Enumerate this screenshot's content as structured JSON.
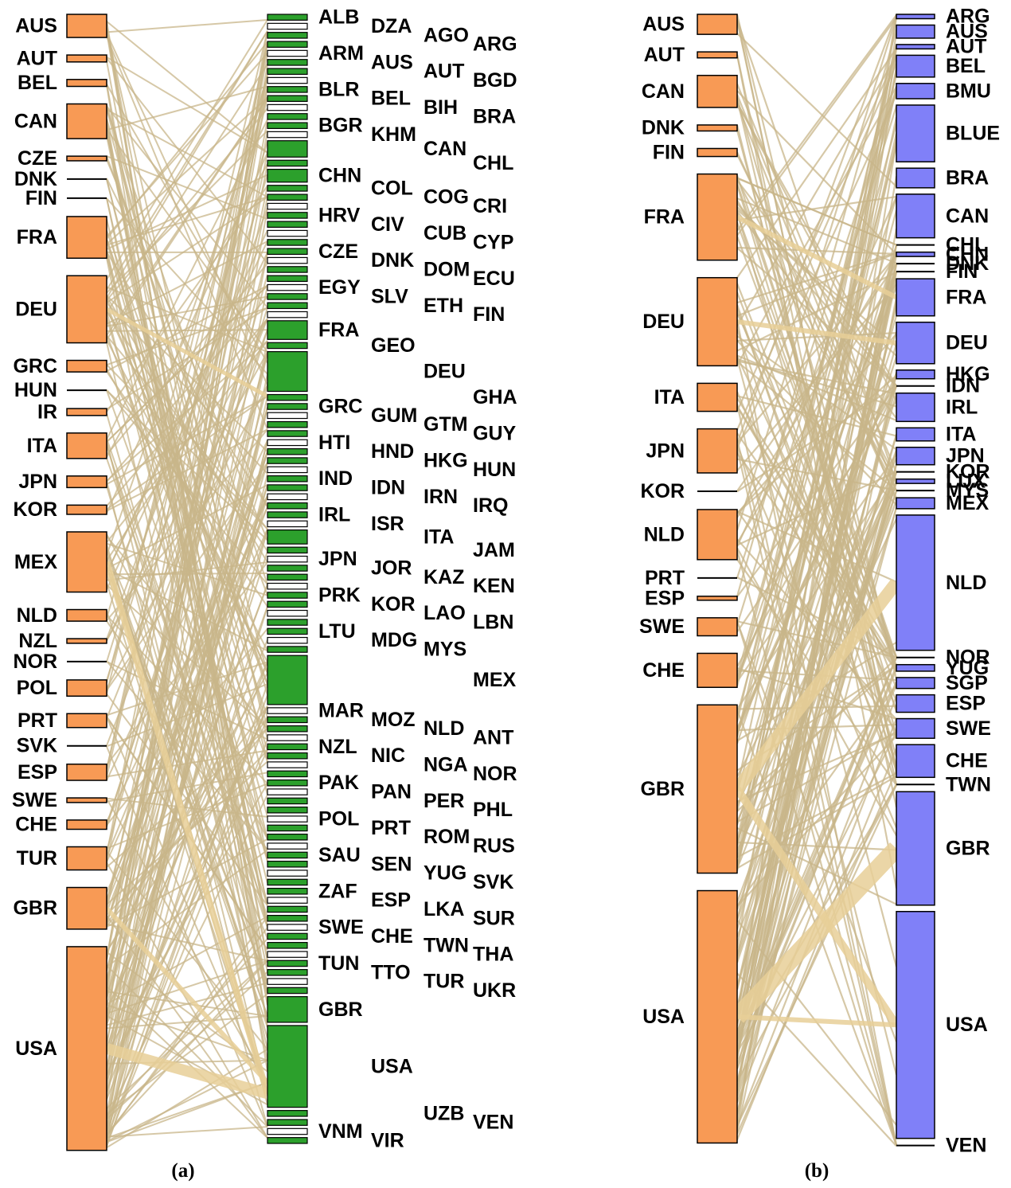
{
  "colors": {
    "source_fill": "#f89a55",
    "target_fill_a": "#2ca02c",
    "target_fill_b": "#8080f8",
    "flow": "#c8b58a",
    "flow_thick": "#e8cf98",
    "outline": "#000000"
  },
  "panel_a": {
    "caption": "(a)",
    "sources": [
      {
        "code": "AUS",
        "size": 1
      },
      {
        "code": "AUT",
        "size": 0.3
      },
      {
        "code": "BEL",
        "size": 0.3
      },
      {
        "code": "CAN",
        "size": 1.5
      },
      {
        "code": "CZE",
        "size": 0.2
      },
      {
        "code": "DNK",
        "size": 0.05
      },
      {
        "code": "FIN",
        "size": 0.05
      },
      {
        "code": "FRA",
        "size": 1.8
      },
      {
        "code": "DEU",
        "size": 2.9
      },
      {
        "code": "GRC",
        "size": 0.5
      },
      {
        "code": "HUN",
        "size": 0.05
      },
      {
        "code": "IR",
        "size": 0.3
      },
      {
        "code": "ITA",
        "size": 1.1
      },
      {
        "code": "JPN",
        "size": 0.5
      },
      {
        "code": "KOR",
        "size": 0.4
      },
      {
        "code": "MEX",
        "size": 2.6
      },
      {
        "code": "NLD",
        "size": 0.5
      },
      {
        "code": "NZL",
        "size": 0.2
      },
      {
        "code": "NOR",
        "size": 0.05
      },
      {
        "code": "POL",
        "size": 0.7
      },
      {
        "code": "PRT",
        "size": 0.6
      },
      {
        "code": "SVK",
        "size": 0.05
      },
      {
        "code": "ESP",
        "size": 0.7
      },
      {
        "code": "SWE",
        "size": 0.2
      },
      {
        "code": "CHE",
        "size": 0.4
      },
      {
        "code": "TUR",
        "size": 1
      },
      {
        "code": "GBR",
        "size": 1.8
      },
      {
        "code": "USA",
        "size": 8.8
      }
    ],
    "targets": [
      {
        "code": "ALB"
      },
      {
        "code": "DZA"
      },
      {
        "code": "AGO"
      },
      {
        "code": "ARG"
      },
      {
        "code": "ARM"
      },
      {
        "code": "AUS"
      },
      {
        "code": "AUT"
      },
      {
        "code": "BGD"
      },
      {
        "code": "BLR"
      },
      {
        "code": "BEL"
      },
      {
        "code": "BIH"
      },
      {
        "code": "BRA"
      },
      {
        "code": "BGR"
      },
      {
        "code": "KHM"
      },
      {
        "code": "CAN"
      },
      {
        "code": "CHL"
      },
      {
        "code": "CHN"
      },
      {
        "code": "COL"
      },
      {
        "code": "COG"
      },
      {
        "code": "CRI"
      },
      {
        "code": "HRV"
      },
      {
        "code": "CIV"
      },
      {
        "code": "CUB"
      },
      {
        "code": "CYP"
      },
      {
        "code": "CZE"
      },
      {
        "code": "DNK"
      },
      {
        "code": "DOM"
      },
      {
        "code": "ECU"
      },
      {
        "code": "EGY"
      },
      {
        "code": "SLV"
      },
      {
        "code": "ETH"
      },
      {
        "code": "FIN"
      },
      {
        "code": "FRA"
      },
      {
        "code": "GEO"
      },
      {
        "code": "DEU"
      },
      {
        "code": "GHA"
      },
      {
        "code": "GRC"
      },
      {
        "code": "GUM"
      },
      {
        "code": "GTM"
      },
      {
        "code": "GUY"
      },
      {
        "code": "HTI"
      },
      {
        "code": "HND"
      },
      {
        "code": "HKG"
      },
      {
        "code": "HUN"
      },
      {
        "code": "IND"
      },
      {
        "code": "IDN"
      },
      {
        "code": "IRN"
      },
      {
        "code": "IRQ"
      },
      {
        "code": "IRL"
      },
      {
        "code": "ISR"
      },
      {
        "code": "ITA"
      },
      {
        "code": "JAM"
      },
      {
        "code": "JPN"
      },
      {
        "code": "JOR"
      },
      {
        "code": "KAZ"
      },
      {
        "code": "KEN"
      },
      {
        "code": "PRK"
      },
      {
        "code": "KOR"
      },
      {
        "code": "LAO"
      },
      {
        "code": "LBN"
      },
      {
        "code": "LTU"
      },
      {
        "code": "MDG"
      },
      {
        "code": "MYS"
      },
      {
        "code": "MEX"
      },
      {
        "code": "MAR"
      },
      {
        "code": "MOZ"
      },
      {
        "code": "NLD"
      },
      {
        "code": "ANT"
      },
      {
        "code": "NZL"
      },
      {
        "code": "NIC"
      },
      {
        "code": "NGA"
      },
      {
        "code": "NOR"
      },
      {
        "code": "PAK"
      },
      {
        "code": "PAN"
      },
      {
        "code": "PER"
      },
      {
        "code": "PHL"
      },
      {
        "code": "POL"
      },
      {
        "code": "PRT"
      },
      {
        "code": "ROM"
      },
      {
        "code": "RUS"
      },
      {
        "code": "SAU"
      },
      {
        "code": "SEN"
      },
      {
        "code": "YUG"
      },
      {
        "code": "SVK"
      },
      {
        "code": "ZAF"
      },
      {
        "code": "ESP"
      },
      {
        "code": "LKA"
      },
      {
        "code": "SUR"
      },
      {
        "code": "SWE"
      },
      {
        "code": "CHE"
      },
      {
        "code": "TWN"
      },
      {
        "code": "THA"
      },
      {
        "code": "TUN"
      },
      {
        "code": "TTO"
      },
      {
        "code": "TUR"
      },
      {
        "code": "UKR"
      },
      {
        "code": "GBR"
      },
      {
        "code": "USA"
      },
      {
        "code": "UZB"
      },
      {
        "code": "VEN"
      },
      {
        "code": "VNM"
      },
      {
        "code": "VIR"
      }
    ]
  },
  "panel_b": {
    "caption": "(b)",
    "sources": [
      {
        "code": "AUS",
        "size": 1
      },
      {
        "code": "AUT",
        "size": 0.3
      },
      {
        "code": "CAN",
        "size": 1.6
      },
      {
        "code": "DNK",
        "size": 0.3
      },
      {
        "code": "FIN",
        "size": 0.4
      },
      {
        "code": "FRA",
        "size": 4.3
      },
      {
        "code": "DEU",
        "size": 4.4
      },
      {
        "code": "ITA",
        "size": 1.4
      },
      {
        "code": "JPN",
        "size": 2.2
      },
      {
        "code": "KOR",
        "size": 0.05
      },
      {
        "code": "NLD",
        "size": 2.5
      },
      {
        "code": "PRT",
        "size": 0.05
      },
      {
        "code": "ESP",
        "size": 0.2
      },
      {
        "code": "SWE",
        "size": 0.9
      },
      {
        "code": "CHE",
        "size": 1.7
      },
      {
        "code": "GBR",
        "size": 8.4
      },
      {
        "code": "USA",
        "size": 12.6
      }
    ],
    "targets": [
      {
        "code": "ARG",
        "size": 0.2
      },
      {
        "code": "AUS",
        "size": 0.6
      },
      {
        "code": "AUT",
        "size": 0.2
      },
      {
        "code": "BEL",
        "size": 1
      },
      {
        "code": "BMU",
        "size": 0.7
      },
      {
        "code": "BLUE",
        "size": 2.6
      },
      {
        "code": "BRA",
        "size": 0.9
      },
      {
        "code": "CAN",
        "size": 2
      },
      {
        "code": "CHL",
        "size": 0.05
      },
      {
        "code": "CHN",
        "size": 0.2
      },
      {
        "code": "DNK",
        "size": 0.05
      },
      {
        "code": "FIN",
        "size": 0.05
      },
      {
        "code": "FRA",
        "size": 1.7
      },
      {
        "code": "DEU",
        "size": 1.9
      },
      {
        "code": "HKG",
        "size": 0.4
      },
      {
        "code": "IDN",
        "size": 0.05
      },
      {
        "code": "IRL",
        "size": 1.3
      },
      {
        "code": "ITA",
        "size": 0.6
      },
      {
        "code": "JPN",
        "size": 0.8
      },
      {
        "code": "KOR",
        "size": 0.05
      },
      {
        "code": "LUX",
        "size": 0.2
      },
      {
        "code": "MYS",
        "size": 0.05
      },
      {
        "code": "MEX",
        "size": 0.5
      },
      {
        "code": "NLD",
        "size": 6.2
      },
      {
        "code": "NOR",
        "size": 0.05
      },
      {
        "code": "YUG",
        "size": 0.3
      },
      {
        "code": "SGP",
        "size": 0.5
      },
      {
        "code": "ESP",
        "size": 0.8
      },
      {
        "code": "SWE",
        "size": 0.9
      },
      {
        "code": "CHE",
        "size": 1.5
      },
      {
        "code": "TWN",
        "size": 0.05
      },
      {
        "code": "GBR",
        "size": 5.2
      },
      {
        "code": "USA",
        "size": 10.4
      },
      {
        "code": "VEN",
        "size": 0.05
      }
    ]
  }
}
